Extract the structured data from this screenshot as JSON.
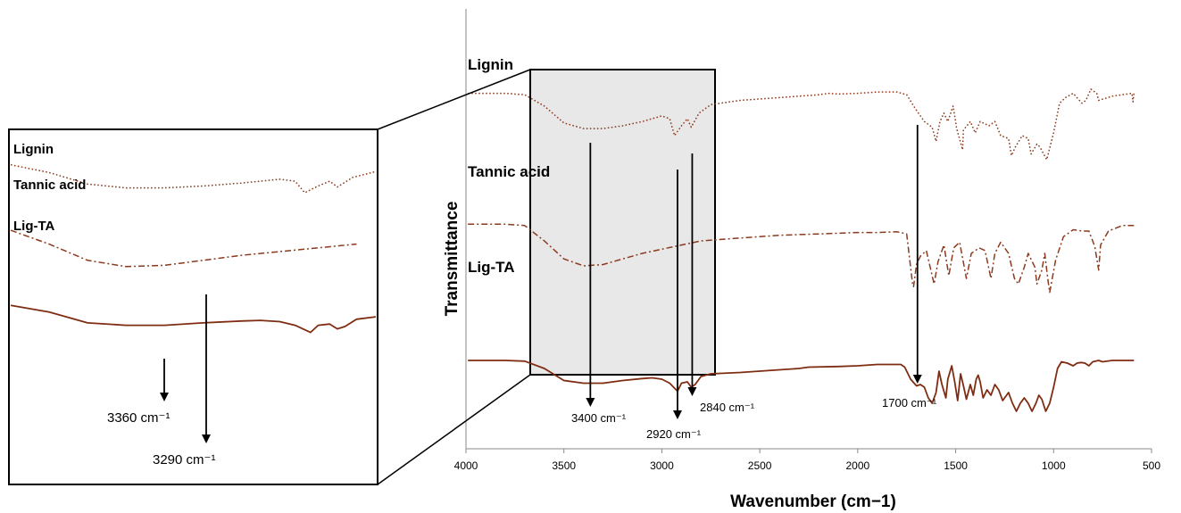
{
  "chart_data": [
    {
      "type": "line",
      "panel": "main",
      "xlabel": "Wavenumber (cm−1)",
      "ylabel": "Transmittance",
      "xlim": [
        4000,
        500
      ],
      "x_reversed": true,
      "x_ticks": [
        4000,
        3500,
        3000,
        2500,
        2000,
        1500,
        1000,
        500
      ],
      "grid": false,
      "series": [
        {
          "name": "Lignin",
          "color": "#8B3A1E",
          "style": "dotted",
          "points": [
            [
              3990,
              0.08
            ],
            [
              3800,
              0.08
            ],
            [
              3700,
              0.09
            ],
            [
              3600,
              0.17
            ],
            [
              3500,
              0.29
            ],
            [
              3400,
              0.33
            ],
            [
              3300,
              0.33
            ],
            [
              3200,
              0.31
            ],
            [
              3100,
              0.28
            ],
            [
              3000,
              0.24
            ],
            [
              2960,
              0.26
            ],
            [
              2935,
              0.38
            ],
            [
              2900,
              0.31
            ],
            [
              2870,
              0.26
            ],
            [
              2850,
              0.32
            ],
            [
              2810,
              0.22
            ],
            [
              2750,
              0.16
            ],
            [
              2600,
              0.13
            ],
            [
              2400,
              0.11
            ],
            [
              2200,
              0.09
            ],
            [
              2150,
              0.08
            ],
            [
              2100,
              0.085
            ],
            [
              2000,
              0.08
            ],
            [
              1900,
              0.07
            ],
            [
              1800,
              0.07
            ],
            [
              1750,
              0.09
            ],
            [
              1710,
              0.18
            ],
            [
              1690,
              0.22
            ],
            [
              1660,
              0.28
            ],
            [
              1620,
              0.32
            ],
            [
              1600,
              0.42
            ],
            [
              1580,
              0.28
            ],
            [
              1560,
              0.22
            ],
            [
              1540,
              0.28
            ],
            [
              1513,
              0.17
            ],
            [
              1495,
              0.33
            ],
            [
              1465,
              0.48
            ],
            [
              1460,
              0.34
            ],
            [
              1425,
              0.28
            ],
            [
              1400,
              0.36
            ],
            [
              1375,
              0.28
            ],
            [
              1330,
              0.31
            ],
            [
              1300,
              0.28
            ],
            [
              1270,
              0.38
            ],
            [
              1230,
              0.4
            ],
            [
              1215,
              0.52
            ],
            [
              1195,
              0.46
            ],
            [
              1160,
              0.38
            ],
            [
              1130,
              0.4
            ],
            [
              1115,
              0.51
            ],
            [
              1085,
              0.44
            ],
            [
              1070,
              0.46
            ],
            [
              1035,
              0.55
            ],
            [
              1000,
              0.36
            ],
            [
              970,
              0.15
            ],
            [
              940,
              0.11
            ],
            [
              900,
              0.08
            ],
            [
              855,
              0.15
            ],
            [
              835,
              0.13
            ],
            [
              810,
              0.05
            ],
            [
              780,
              0.08
            ],
            [
              770,
              0.13
            ],
            [
              700,
              0.1
            ],
            [
              600,
              0.08
            ],
            [
              595,
              0.14
            ],
            [
              590,
              0.08
            ]
          ]
        },
        {
          "name": "Tannic acid",
          "color": "#8B3A1E",
          "style": "dash-dot",
          "points": [
            [
              3990,
              0.29
            ],
            [
              3800,
              0.29
            ],
            [
              3700,
              0.3
            ],
            [
              3600,
              0.41
            ],
            [
              3500,
              0.54
            ],
            [
              3400,
              0.59
            ],
            [
              3300,
              0.58
            ],
            [
              3200,
              0.54
            ],
            [
              3100,
              0.5
            ],
            [
              3000,
              0.47
            ],
            [
              2900,
              0.44
            ],
            [
              2800,
              0.41
            ],
            [
              2600,
              0.39
            ],
            [
              2400,
              0.37
            ],
            [
              2200,
              0.36
            ],
            [
              2000,
              0.35
            ],
            [
              1900,
              0.35
            ],
            [
              1800,
              0.345
            ],
            [
              1750,
              0.36
            ],
            [
              1720,
              0.72
            ],
            [
              1715,
              0.74
            ],
            [
              1700,
              0.58
            ],
            [
              1680,
              0.52
            ],
            [
              1650,
              0.48
            ],
            [
              1610,
              0.72
            ],
            [
              1590,
              0.56
            ],
            [
              1560,
              0.44
            ],
            [
              1535,
              0.66
            ],
            [
              1510,
              0.46
            ],
            [
              1480,
              0.42
            ],
            [
              1445,
              0.68
            ],
            [
              1420,
              0.5
            ],
            [
              1380,
              0.46
            ],
            [
              1350,
              0.48
            ],
            [
              1320,
              0.68
            ],
            [
              1300,
              0.5
            ],
            [
              1270,
              0.42
            ],
            [
              1230,
              0.5
            ],
            [
              1200,
              0.68
            ],
            [
              1180,
              0.72
            ],
            [
              1150,
              0.6
            ],
            [
              1130,
              0.5
            ],
            [
              1095,
              0.6
            ],
            [
              1085,
              0.72
            ],
            [
              1060,
              0.62
            ],
            [
              1045,
              0.5
            ],
            [
              1030,
              0.68
            ],
            [
              1020,
              0.78
            ],
            [
              990,
              0.55
            ],
            [
              950,
              0.38
            ],
            [
              900,
              0.33
            ],
            [
              850,
              0.34
            ],
            [
              820,
              0.34
            ],
            [
              790,
              0.45
            ],
            [
              770,
              0.62
            ],
            [
              760,
              0.44
            ],
            [
              720,
              0.34
            ],
            [
              650,
              0.3
            ],
            [
              600,
              0.3
            ],
            [
              590,
              0.3
            ]
          ]
        },
        {
          "name": "Lig-TA",
          "color": "#7F2D12",
          "style": "solid",
          "points": [
            [
              3990,
              0.56
            ],
            [
              3800,
              0.56
            ],
            [
              3700,
              0.565
            ],
            [
              3600,
              0.62
            ],
            [
              3500,
              0.71
            ],
            [
              3400,
              0.73
            ],
            [
              3300,
              0.73
            ],
            [
              3200,
              0.71
            ],
            [
              3100,
              0.695
            ],
            [
              3050,
              0.69
            ],
            [
              3000,
              0.7
            ],
            [
              2960,
              0.73
            ],
            [
              2940,
              0.76
            ],
            [
              2920,
              0.79
            ],
            [
              2900,
              0.73
            ],
            [
              2870,
              0.72
            ],
            [
              2850,
              0.76
            ],
            [
              2830,
              0.74
            ],
            [
              2800,
              0.68
            ],
            [
              2750,
              0.66
            ],
            [
              2600,
              0.65
            ],
            [
              2400,
              0.63
            ],
            [
              2300,
              0.62
            ],
            [
              2250,
              0.61
            ],
            [
              2100,
              0.605
            ],
            [
              2000,
              0.6
            ],
            [
              1900,
              0.59
            ],
            [
              1780,
              0.59
            ],
            [
              1760,
              0.61
            ],
            [
              1730,
              0.7
            ],
            [
              1700,
              0.75
            ],
            [
              1680,
              0.74
            ],
            [
              1660,
              0.76
            ],
            [
              1640,
              0.84
            ],
            [
              1620,
              0.88
            ],
            [
              1600,
              0.8
            ],
            [
              1585,
              0.64
            ],
            [
              1570,
              0.74
            ],
            [
              1550,
              0.84
            ],
            [
              1540,
              0.7
            ],
            [
              1520,
              0.6
            ],
            [
              1505,
              0.72
            ],
            [
              1490,
              0.86
            ],
            [
              1475,
              0.66
            ],
            [
              1460,
              0.75
            ],
            [
              1445,
              0.85
            ],
            [
              1425,
              0.74
            ],
            [
              1410,
              0.82
            ],
            [
              1395,
              0.7
            ],
            [
              1385,
              0.67
            ],
            [
              1375,
              0.72
            ],
            [
              1360,
              0.84
            ],
            [
              1340,
              0.78
            ],
            [
              1320,
              0.82
            ],
            [
              1300,
              0.74
            ],
            [
              1280,
              0.78
            ],
            [
              1260,
              0.86
            ],
            [
              1230,
              0.8
            ],
            [
              1210,
              0.88
            ],
            [
              1190,
              0.94
            ],
            [
              1170,
              0.88
            ],
            [
              1150,
              0.84
            ],
            [
              1130,
              0.88
            ],
            [
              1110,
              0.94
            ],
            [
              1090,
              0.88
            ],
            [
              1075,
              0.82
            ],
            [
              1060,
              0.85
            ],
            [
              1040,
              0.94
            ],
            [
              1020,
              0.88
            ],
            [
              1000,
              0.76
            ],
            [
              980,
              0.62
            ],
            [
              960,
              0.57
            ],
            [
              930,
              0.58
            ],
            [
              900,
              0.6
            ],
            [
              880,
              0.58
            ],
            [
              860,
              0.575
            ],
            [
              840,
              0.58
            ],
            [
              820,
              0.6
            ],
            [
              800,
              0.57
            ],
            [
              770,
              0.56
            ],
            [
              750,
              0.57
            ],
            [
              700,
              0.56
            ],
            [
              650,
              0.56
            ],
            [
              600,
              0.56
            ],
            [
              590,
              0.56
            ]
          ]
        }
      ],
      "annotations": [
        {
          "label": "3400 cm⁻¹",
          "x": 3365
        },
        {
          "label": "2920 cm⁻¹",
          "x": 2920
        },
        {
          "label": "2840 cm⁻¹",
          "x": 2845
        },
        {
          "label": "1700 cm⁻¹",
          "x": 1695
        }
      ],
      "zoom_region": {
        "x": [
          3700,
          2750
        ]
      }
    },
    {
      "type": "line",
      "panel": "inset",
      "xlim": [
        3700,
        2750
      ],
      "series": [
        {
          "name": "Lignin",
          "style": "dotted",
          "color": "#8B3A1E"
        },
        {
          "name": "Tannic acid",
          "style": "dash-dot",
          "color": "#8B3A1E"
        },
        {
          "name": "Lig-TA",
          "style": "solid",
          "color": "#7F2D12"
        }
      ],
      "annotations": [
        {
          "label": "3360 cm⁻¹"
        },
        {
          "label": "3290 cm⁻¹"
        }
      ]
    }
  ]
}
